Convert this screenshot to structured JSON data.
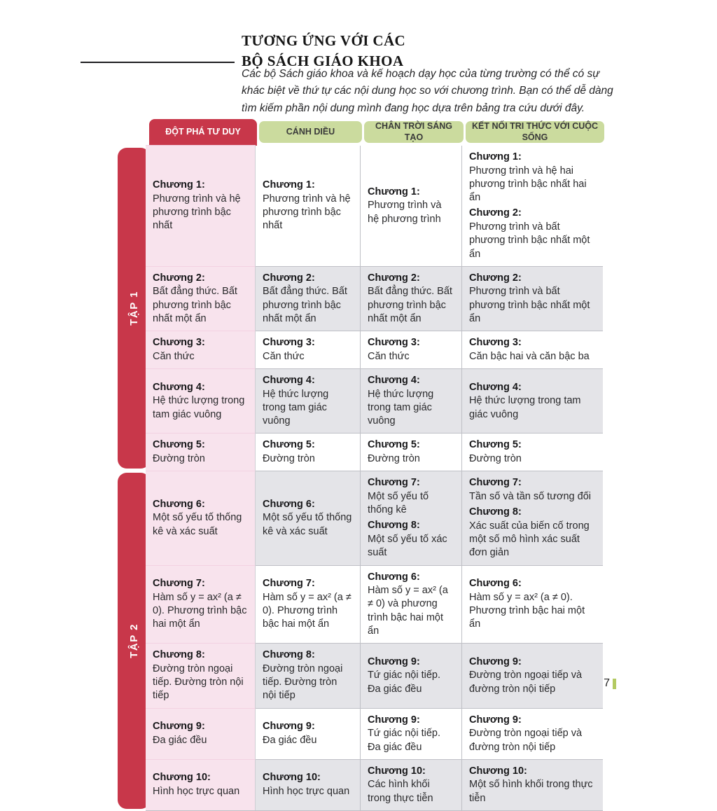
{
  "header": {
    "title_line1": "TƯƠNG ỨNG VỚI CÁC",
    "title_line2": "BỘ SÁCH GIÁO KHOA",
    "intro": "Các bộ Sách giáo khoa và kế hoạch dạy học của từng trường có thể có sự khác biệt về thứ tự các nội dung học so với chương trình. Bạn có thể dễ dàng tìm kiếm phần nội dung mình đang học dựa trên bảng tra cứu dưới đây."
  },
  "colors": {
    "accent_red": "#c8374a",
    "accent_green": "#cbdb9e",
    "first_column_pink": "#f8e3ed",
    "shaded_row_gray": "#e4e4e8",
    "page_bar_green": "#b3ca62"
  },
  "table": {
    "columns": [
      "ĐỘT PHÁ TƯ DUY",
      "CÁNH DIỀU",
      "CHÂN TRỜI SÁNG TẠO",
      "KẾT NỐI TRI THỨC VỚI CUỘC SỐNG"
    ],
    "groups": [
      {
        "label": "TẬP 1",
        "rows": [
          0,
          1,
          2,
          3,
          4
        ]
      },
      {
        "label": "TẬP 2",
        "rows": [
          5,
          6,
          7,
          8,
          9
        ]
      }
    ],
    "rows": [
      {
        "cells": [
          [
            {
              "ch": "Chương 1:",
              "text": "Phương trình và hệ phương trình bậc nhất"
            }
          ],
          [
            {
              "ch": "Chương 1:",
              "text": "Phương trình và hệ phương trình bậc nhất"
            }
          ],
          [
            {
              "ch": "Chương 1:",
              "text": "Phương trình và hệ phương trình"
            }
          ],
          [
            {
              "ch": "Chương 1:",
              "text": "Phương trình và hệ hai phương trình bậc nhất hai ẩn"
            },
            {
              "ch": "Chương 2:",
              "text": "Phương trình và bất phương trình bậc nhất một ẩn"
            }
          ]
        ]
      },
      {
        "cells": [
          [
            {
              "ch": "Chương 2:",
              "text": "Bất đẳng thức. Bất phương trình bậc nhất một ẩn"
            }
          ],
          [
            {
              "ch": "Chương 2:",
              "text": "Bất đẳng thức. Bất phương trình bậc nhất một ẩn"
            }
          ],
          [
            {
              "ch": "Chương 2:",
              "text": "Bất đẳng thức. Bất phương trình bậc nhất một ẩn"
            }
          ],
          [
            {
              "ch": "Chương 2:",
              "text": "Phương trình và bất phương trình bậc nhất một ẩn"
            }
          ]
        ]
      },
      {
        "cells": [
          [
            {
              "ch": "Chương 3:",
              "text": "Căn thức"
            }
          ],
          [
            {
              "ch": "Chương 3:",
              "text": "Căn thức"
            }
          ],
          [
            {
              "ch": "Chương 3:",
              "text": "Căn thức"
            }
          ],
          [
            {
              "ch": "Chương 3:",
              "text": "Căn bậc hai và căn bậc ba"
            }
          ]
        ]
      },
      {
        "cells": [
          [
            {
              "ch": "Chương 4:",
              "text": "Hệ thức lượng trong tam giác vuông"
            }
          ],
          [
            {
              "ch": "Chương 4:",
              "text": "Hệ thức lượng trong tam giác vuông"
            }
          ],
          [
            {
              "ch": "Chương 4:",
              "text": "Hệ thức lượng trong tam giác vuông"
            }
          ],
          [
            {
              "ch": "Chương 4:",
              "text": "Hệ thức lượng trong tam giác vuông"
            }
          ]
        ]
      },
      {
        "cells": [
          [
            {
              "ch": "Chương 5:",
              "text": "Đường tròn"
            }
          ],
          [
            {
              "ch": "Chương 5:",
              "text": "Đường tròn"
            }
          ],
          [
            {
              "ch": "Chương 5:",
              "text": "Đường tròn"
            }
          ],
          [
            {
              "ch": "Chương 5:",
              "text": "Đường tròn"
            }
          ]
        ]
      },
      {
        "cells": [
          [
            {
              "ch": "Chương 6:",
              "text": "Một số yếu tố thống kê và xác suất"
            }
          ],
          [
            {
              "ch": "Chương 6:",
              "text": "Một số yếu tố thống kê và xác suất"
            }
          ],
          [
            {
              "ch": "Chương 7:",
              "text": "Một số yếu tố thống kê"
            },
            {
              "ch": "Chương 8:",
              "text": "Một số yếu tố xác suất"
            }
          ],
          [
            {
              "ch": "Chương 7:",
              "text": "Tần số và tần số tương đối"
            },
            {
              "ch": "Chương 8:",
              "text": "Xác suất của biến cố trong một số mô hình xác suất đơn giản"
            }
          ]
        ]
      },
      {
        "cells": [
          [
            {
              "ch": "Chương 7:",
              "text": "Hàm số y = ax² (a ≠ 0). Phương trình bậc hai một ẩn"
            }
          ],
          [
            {
              "ch": "Chương 7:",
              "text": "Hàm số y = ax² (a ≠ 0). Phương trình bậc hai một ẩn"
            }
          ],
          [
            {
              "ch": "Chương 6:",
              "text": "Hàm số y = ax² (a ≠ 0) và phương trình bậc hai một ẩn"
            }
          ],
          [
            {
              "ch": "Chương 6:",
              "text": "Hàm số y = ax² (a ≠ 0). Phương trình bậc hai một ẩn"
            }
          ]
        ]
      },
      {
        "cells": [
          [
            {
              "ch": "Chương 8:",
              "text": "Đường tròn ngoại tiếp. Đường tròn nội tiếp"
            }
          ],
          [
            {
              "ch": "Chương 8:",
              "text": "Đường tròn ngoại tiếp. Đường tròn nội tiếp"
            }
          ],
          [
            {
              "ch": "Chương 9:",
              "text": "Tứ giác nội tiếp. Đa giác đều"
            }
          ],
          [
            {
              "ch": "Chương 9:",
              "text": "Đường tròn ngoại tiếp và đường tròn nội tiếp"
            }
          ]
        ]
      },
      {
        "cells": [
          [
            {
              "ch": "Chương 9:",
              "text": "Đa giác đều"
            }
          ],
          [
            {
              "ch": "Chương 9:",
              "text": "Đa giác đều"
            }
          ],
          [
            {
              "ch": "Chương 9:",
              "text": "Tứ giác nội tiếp. Đa giác đều"
            }
          ],
          [
            {
              "ch": "Chương 9:",
              "text": "Đường tròn ngoại tiếp và đường tròn nội tiếp"
            }
          ]
        ]
      },
      {
        "cells": [
          [
            {
              "ch": "Chương 10:",
              "text": "Hình học trực quan"
            }
          ],
          [
            {
              "ch": "Chương 10:",
              "text": "Hình học trực quan"
            }
          ],
          [
            {
              "ch": "Chương 10:",
              "text": "Các hình khối trong thực tiễn"
            }
          ],
          [
            {
              "ch": "Chương 10:",
              "text": "Một số hình khối trong thực tiễn"
            }
          ]
        ]
      }
    ]
  },
  "footer": {
    "page_number": "7"
  }
}
